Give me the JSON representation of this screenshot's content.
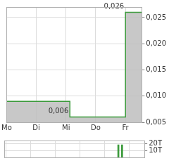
{
  "chart_data": [
    {
      "type": "line",
      "x": [
        0,
        2.13,
        2.13,
        4.0,
        4.0,
        4.55
      ],
      "values": [
        0.009,
        0.009,
        0.006,
        0.006,
        0.026,
        0.026
      ],
      "color": "#3a9a3a",
      "xlim": [
        0,
        4.55
      ],
      "xticks": [
        {
          "value": 0,
          "label": "Mo"
        },
        {
          "value": 1,
          "label": "Di"
        },
        {
          "value": 2,
          "label": "Mi"
        },
        {
          "value": 3,
          "label": "Do"
        },
        {
          "value": 4,
          "label": "Fr"
        }
      ],
      "ylim": [
        0.005,
        0.027
      ],
      "yticks": [
        {
          "value": 0.005,
          "label": "0,005"
        },
        {
          "value": 0.01,
          "label": "0,010"
        },
        {
          "value": 0.015,
          "label": "0,015"
        },
        {
          "value": 0.02,
          "label": "0,020"
        },
        {
          "value": 0.025,
          "label": "0,025"
        }
      ],
      "grid": true,
      "annotations": [
        {
          "text": "0,026",
          "x": 4.0,
          "y": 0.026
        },
        {
          "text": "0,006",
          "x": 2.13,
          "y": 0.006
        }
      ]
    },
    {
      "type": "bar",
      "x": [
        4.06,
        4.21
      ],
      "values": [
        18000,
        18000
      ],
      "color": "#3a9a3a",
      "xlim": [
        0,
        4.55
      ],
      "xticks": [
        0,
        1,
        2,
        3,
        4
      ],
      "ylim": [
        0,
        24000
      ],
      "yticks": [
        {
          "value": 10000,
          "label": "10T"
        },
        {
          "value": 20000,
          "label": "20T"
        }
      ],
      "grid": true,
      "tick_labels": "y"
    }
  ]
}
